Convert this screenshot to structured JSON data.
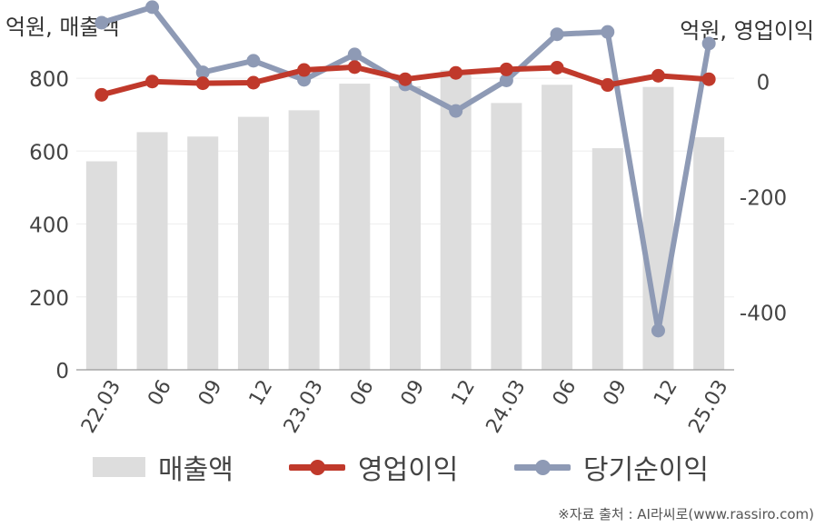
{
  "header": {
    "left_unit": "억원, 매출액",
    "right_unit": "억원, 영업이익"
  },
  "footer": {
    "source": "※자료 출처 : AI라씨로(www.rassiro.com)"
  },
  "legend": {
    "items": [
      {
        "label": "매출액",
        "kind": "bar",
        "color": "#dddddd"
      },
      {
        "label": "영업이익",
        "kind": "line",
        "color": "#c0392b"
      },
      {
        "label": "당기순이익",
        "kind": "line",
        "color": "#8e9ab5"
      }
    ]
  },
  "chart_data": {
    "type": "bar+line",
    "categories": [
      "22.03",
      "06",
      "09",
      "12",
      "23.03",
      "06",
      "09",
      "12",
      "24.03",
      "06",
      "09",
      "12",
      "25.03"
    ],
    "left_axis": {
      "label": "억원, 매출액",
      "range": [
        0,
        870
      ],
      "ticks": [
        0,
        200,
        400,
        600,
        800
      ]
    },
    "right_axis": {
      "label": "억원, 영업이익",
      "range": [
        -500,
        50
      ],
      "ticks": [
        0,
        -200,
        -400
      ]
    },
    "grid": true,
    "legend_position": "bottom",
    "series": [
      {
        "name": "매출액",
        "type": "bar",
        "axis": "left",
        "color": "#dddddd",
        "values": [
          572,
          652,
          640,
          694,
          712,
          785,
          778,
          822,
          732,
          782,
          608,
          776,
          638
        ]
      },
      {
        "name": "영업이익",
        "type": "line",
        "axis": "right",
        "color": "#c0392b",
        "values": [
          -23,
          0,
          -3,
          -2,
          20,
          25,
          4,
          15,
          21,
          24,
          -6,
          10,
          4
        ]
      },
      {
        "name": "당기순이익",
        "type": "line",
        "axis": "right",
        "color": "#8e9ab5",
        "values": [
          102,
          129,
          16,
          36,
          3,
          47,
          -5,
          -51,
          2,
          82,
          86,
          -432,
          66
        ]
      }
    ]
  }
}
